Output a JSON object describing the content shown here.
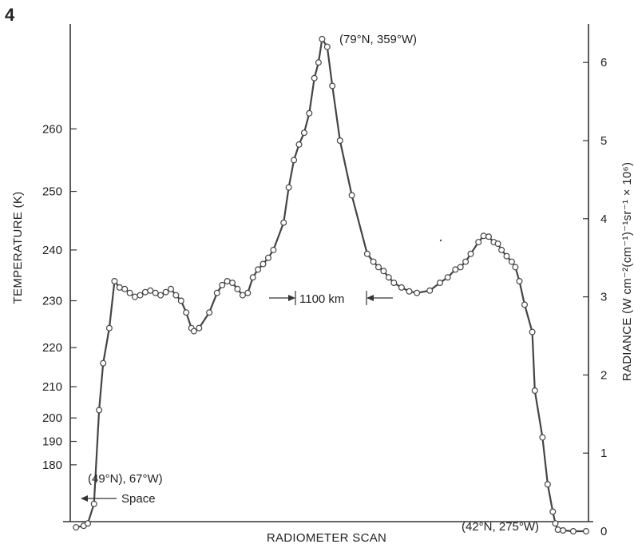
{
  "figure_number": "4",
  "chart_data": {
    "type": "line",
    "title": "",
    "xlabel": "RADIOMETER SCAN",
    "ylabel": "TEMPERATURE (K)",
    "ylabel_right": "RADIANCE (W cm⁻²(cm⁻¹)⁻¹sr⁻¹ × 10⁶)",
    "ylim_right": [
      0,
      6.5
    ],
    "left_ticks": [
      180,
      190,
      200,
      210,
      220,
      230,
      240,
      250,
      260
    ],
    "left_tick_radiance": [
      0.85,
      1.15,
      1.45,
      1.85,
      2.35,
      2.95,
      3.6,
      4.35,
      5.15
    ],
    "right_ticks": [
      0,
      1,
      2,
      3,
      4,
      5,
      6
    ],
    "x_unit": "fraction of scan",
    "xlim": [
      0,
      1
    ],
    "grid": false,
    "series": [
      {
        "values_in": "radiance",
        "x": [
          0.005,
          0.02,
          0.028,
          0.04,
          0.05,
          0.058,
          0.07,
          0.08,
          0.09,
          0.1,
          0.11,
          0.12,
          0.13,
          0.14,
          0.15,
          0.16,
          0.17,
          0.18,
          0.19,
          0.2,
          0.21,
          0.22,
          0.23,
          0.235,
          0.245,
          0.265,
          0.28,
          0.29,
          0.3,
          0.31,
          0.32,
          0.33,
          0.34,
          0.35,
          0.36,
          0.37,
          0.38,
          0.39,
          0.41,
          0.42,
          0.43,
          0.44,
          0.45,
          0.46,
          0.47,
          0.478,
          0.485,
          0.495,
          0.505,
          0.52,
          0.543,
          0.573,
          0.585,
          0.595,
          0.605,
          0.615,
          0.625,
          0.64,
          0.655,
          0.67,
          0.695,
          0.715,
          0.73,
          0.745,
          0.755,
          0.765,
          0.775,
          0.79,
          0.8,
          0.81,
          0.82,
          0.828,
          0.835,
          0.845,
          0.855,
          0.862,
          0.87,
          0.88,
          0.895,
          0.9,
          0.915,
          0.925,
          0.935,
          0.94,
          0.945,
          0.955,
          0.975,
          1.0
        ],
        "values": [
          0.05,
          0.07,
          0.1,
          0.35,
          1.55,
          2.15,
          2.6,
          3.2,
          3.12,
          3.1,
          3.05,
          3.0,
          3.02,
          3.06,
          3.08,
          3.05,
          3.02,
          3.06,
          3.1,
          3.02,
          2.95,
          2.8,
          2.6,
          2.56,
          2.6,
          2.8,
          3.05,
          3.15,
          3.2,
          3.18,
          3.1,
          3.02,
          3.05,
          3.25,
          3.35,
          3.42,
          3.5,
          3.6,
          3.95,
          4.4,
          4.75,
          4.95,
          5.1,
          5.35,
          5.8,
          6.0,
          6.3,
          6.2,
          5.7,
          5.0,
          4.3,
          3.55,
          3.45,
          3.38,
          3.33,
          3.25,
          3.18,
          3.12,
          3.07,
          3.05,
          3.08,
          3.18,
          3.25,
          3.35,
          3.38,
          3.45,
          3.55,
          3.7,
          3.78,
          3.77,
          3.7,
          3.68,
          3.6,
          3.52,
          3.45,
          3.38,
          3.2,
          2.9,
          2.55,
          1.8,
          1.2,
          0.6,
          0.25,
          0.1,
          0.02,
          0.01,
          0.0,
          0.0
        ]
      }
    ],
    "annotations": {
      "peak": "(79°N, 359°W)",
      "start": "(49°N), 67°W)",
      "space": "Space",
      "end": "(42°N, 275°W)",
      "scale_label": "1100 km"
    }
  }
}
